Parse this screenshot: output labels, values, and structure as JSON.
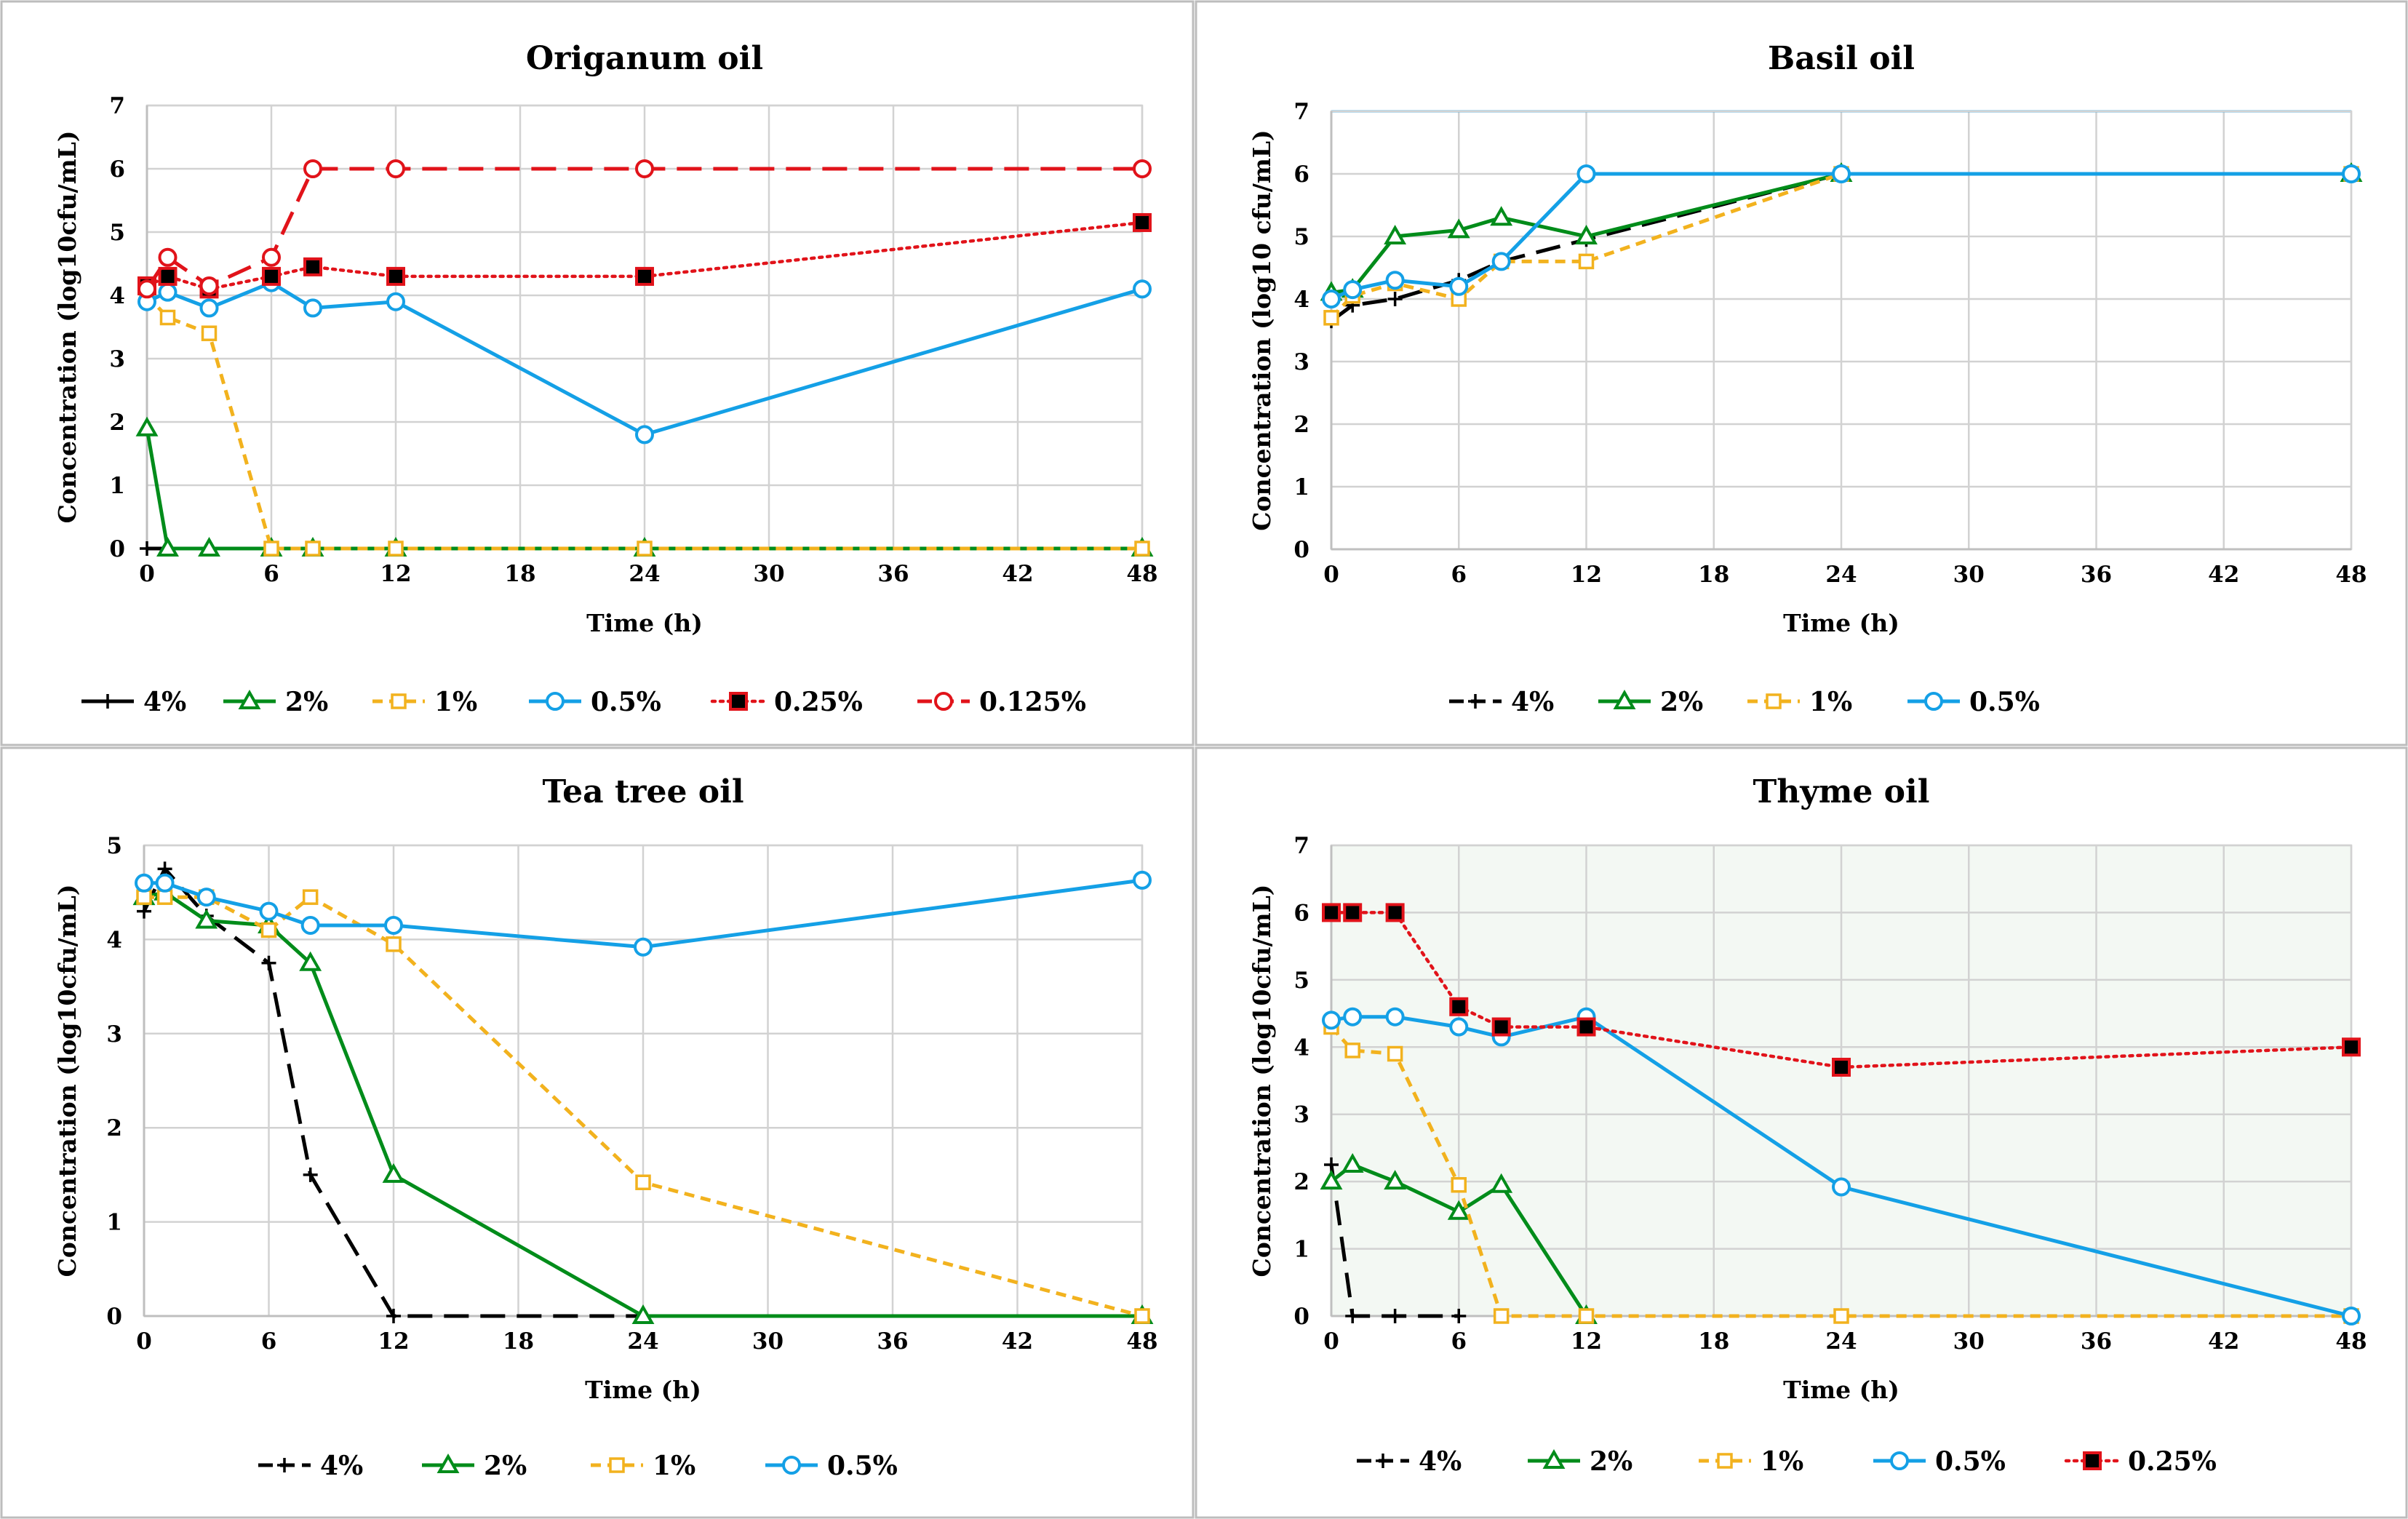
{
  "colors": {
    "s4": "#000000",
    "s2": "#008c1a",
    "s1": "#f2b21e",
    "s05": "#14a0e6",
    "s025": "#e1131a",
    "s0125": "#e1131a",
    "grid": "#d2d2d2",
    "panel_border": "#bdbdbd",
    "thyme_bg": "#f3f8f3",
    "basil_top": "#14a0e6"
  },
  "chart_data": [
    {
      "type": "line",
      "title": "Origanum oil",
      "xlabel": "Time (h)",
      "ylabel": "Concentration (log10cfu/mL)",
      "xlim": [
        0,
        48
      ],
      "ylim": [
        0,
        7
      ],
      "xticks": [
        "0",
        "6",
        "12",
        "18",
        "24",
        "30",
        "36",
        "42",
        "48"
      ],
      "yticks": [
        "0",
        "1",
        "2",
        "3",
        "4",
        "5",
        "6",
        "7"
      ],
      "series": [
        {
          "name": "4%",
          "key": "s4",
          "marker": "plus",
          "dash": "solid",
          "x": [
            0,
            1
          ],
          "y": [
            0,
            0
          ]
        },
        {
          "name": "2%",
          "key": "s2",
          "marker": "triangle",
          "dash": "solid",
          "x": [
            0,
            1,
            3,
            6,
            8,
            12,
            24,
            48
          ],
          "y": [
            1.9,
            0,
            0,
            0,
            0,
            0,
            0,
            0
          ]
        },
        {
          "name": "1%",
          "key": "s1",
          "marker": "square-open",
          "dash": "dash",
          "x": [
            0,
            1,
            3,
            6,
            8,
            12,
            24,
            48
          ],
          "y": [
            4.0,
            3.65,
            3.4,
            0,
            0,
            0,
            0,
            0
          ]
        },
        {
          "name": "0.5%",
          "key": "s05",
          "marker": "circle",
          "dash": "solid",
          "x": [
            0,
            1,
            3,
            6,
            8,
            12,
            24,
            48
          ],
          "y": [
            3.9,
            4.05,
            3.8,
            4.2,
            3.8,
            3.9,
            1.8,
            4.1
          ]
        },
        {
          "name": "0.25%",
          "key": "s025",
          "marker": "square-filled",
          "dash": "dot",
          "x": [
            0,
            1,
            3,
            6,
            8,
            12,
            24,
            48
          ],
          "y": [
            4.15,
            4.3,
            4.1,
            4.3,
            4.45,
            4.3,
            4.3,
            5.15
          ]
        },
        {
          "name": "0.125%",
          "key": "s0125",
          "marker": "circle",
          "dash": "longdash",
          "x": [
            0,
            1,
            3,
            6,
            8,
            12,
            24,
            48
          ],
          "y": [
            4.1,
            4.6,
            4.15,
            4.6,
            6.0,
            6.0,
            6.0,
            6.0
          ]
        }
      ]
    },
    {
      "type": "line",
      "title": "Basil oil",
      "xlabel": "Time (h)",
      "ylabel": "Concentration (log10 cfu/mL)",
      "xlim": [
        0,
        48
      ],
      "ylim": [
        0,
        7
      ],
      "xticks": [
        "0",
        "6",
        "12",
        "18",
        "24",
        "30",
        "36",
        "42",
        "48"
      ],
      "yticks": [
        "0",
        "1",
        "2",
        "3",
        "4",
        "5",
        "6",
        "7"
      ],
      "series": [
        {
          "name": "4%",
          "key": "s4",
          "marker": "plus",
          "dash": "longdash",
          "x": [
            0,
            1,
            3,
            6,
            8,
            12,
            24,
            48
          ],
          "y": [
            3.65,
            3.9,
            4.0,
            4.3,
            4.6,
            4.95,
            6.0,
            6.0
          ]
        },
        {
          "name": "2%",
          "key": "s2",
          "marker": "triangle",
          "dash": "solid",
          "x": [
            0,
            1,
            3,
            6,
            8,
            12,
            24,
            48
          ],
          "y": [
            4.1,
            4.15,
            5.0,
            5.1,
            5.3,
            5.0,
            6.0,
            6.0
          ]
        },
        {
          "name": "1%",
          "key": "s1",
          "marker": "square-open",
          "dash": "dash",
          "x": [
            0,
            1,
            3,
            6,
            8,
            12,
            24,
            48
          ],
          "y": [
            3.7,
            4.05,
            4.25,
            4.0,
            4.6,
            4.6,
            6.0,
            6.0
          ]
        },
        {
          "name": "0.5%",
          "key": "s05",
          "marker": "circle",
          "dash": "solid",
          "x": [
            0,
            1,
            3,
            6,
            8,
            12,
            24,
            48
          ],
          "y": [
            4.0,
            4.15,
            4.3,
            4.2,
            4.6,
            6.0,
            6.0,
            6.0
          ]
        }
      ]
    },
    {
      "type": "line",
      "title": "Tea tree oil",
      "xlabel": "Time (h)",
      "ylabel": "Concentration (log10cfu/mL)",
      "xlim": [
        0,
        48
      ],
      "ylim": [
        0,
        5
      ],
      "xticks": [
        "0",
        "6",
        "12",
        "18",
        "24",
        "30",
        "36",
        "42",
        "48"
      ],
      "yticks": [
        "0",
        "1",
        "2",
        "3",
        "4",
        "5"
      ],
      "series": [
        {
          "name": "4%",
          "key": "s4",
          "marker": "plus",
          "dash": "longdash",
          "x": [
            0,
            1,
            3,
            6,
            8,
            12,
            24
          ],
          "y": [
            4.3,
            4.75,
            4.25,
            3.75,
            1.5,
            0,
            0
          ]
        },
        {
          "name": "2%",
          "key": "s2",
          "marker": "triangle",
          "dash": "solid",
          "x": [
            0,
            1,
            3,
            6,
            8,
            12,
            24,
            48
          ],
          "y": [
            4.45,
            4.5,
            4.2,
            4.15,
            3.75,
            1.5,
            0,
            0
          ]
        },
        {
          "name": "1%",
          "key": "s1",
          "marker": "square-open",
          "dash": "dash",
          "x": [
            0,
            1,
            3,
            6,
            8,
            12,
            24,
            48
          ],
          "y": [
            4.45,
            4.45,
            4.45,
            4.1,
            4.45,
            3.95,
            1.42,
            0
          ]
        },
        {
          "name": "0.5%",
          "key": "s05",
          "marker": "circle",
          "dash": "solid",
          "x": [
            0,
            1,
            3,
            6,
            8,
            12,
            24,
            48
          ],
          "y": [
            4.6,
            4.6,
            4.45,
            4.3,
            4.15,
            4.15,
            3.92,
            4.63
          ]
        }
      ]
    },
    {
      "type": "line",
      "title": "Thyme oil",
      "xlabel": "Time (h)",
      "ylabel": "Concentration (log10cfu/mL)",
      "xlim": [
        0,
        48
      ],
      "ylim": [
        0,
        7
      ],
      "xticks": [
        "0",
        "6",
        "12",
        "18",
        "24",
        "30",
        "36",
        "42",
        "48"
      ],
      "yticks": [
        "0",
        "1",
        "2",
        "3",
        "4",
        "5",
        "6",
        "7"
      ],
      "series": [
        {
          "name": "4%",
          "key": "s4",
          "marker": "plus",
          "dash": "longdash",
          "x": [
            0,
            1,
            3,
            6
          ],
          "y": [
            2.25,
            0,
            0,
            0
          ]
        },
        {
          "name": "2%",
          "key": "s2",
          "marker": "triangle",
          "dash": "solid",
          "x": [
            0,
            1,
            3,
            6,
            8,
            12
          ],
          "y": [
            2.0,
            2.25,
            2.0,
            1.55,
            1.95,
            0
          ]
        },
        {
          "name": "1%",
          "key": "s1",
          "marker": "square-open",
          "dash": "dash",
          "x": [
            0,
            1,
            3,
            6,
            8,
            12,
            24,
            48
          ],
          "y": [
            4.3,
            3.95,
            3.9,
            1.95,
            0,
            0,
            0,
            0
          ]
        },
        {
          "name": "0.5%",
          "key": "s05",
          "marker": "circle",
          "dash": "solid",
          "x": [
            0,
            1,
            3,
            6,
            8,
            12,
            24,
            48
          ],
          "y": [
            4.4,
            4.45,
            4.45,
            4.3,
            4.15,
            4.45,
            1.92,
            0
          ]
        },
        {
          "name": "0.25%",
          "key": "s025",
          "marker": "square-filled",
          "dash": "dot",
          "x": [
            0,
            1,
            3,
            6,
            8,
            12,
            24,
            48
          ],
          "y": [
            6.0,
            6.0,
            6.0,
            4.6,
            4.3,
            4.3,
            3.7,
            4.0
          ]
        }
      ]
    }
  ]
}
